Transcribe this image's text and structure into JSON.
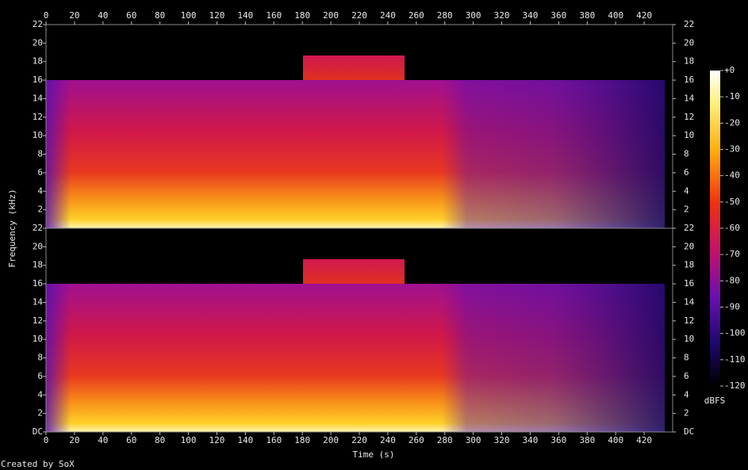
{
  "chart_data": {
    "type": "spectrogram",
    "x_label": "Time (s)",
    "y_label": "Frequency (kHz)",
    "xlim": [
      0,
      440
    ],
    "xticks": [
      0,
      20,
      40,
      60,
      80,
      100,
      120,
      140,
      160,
      180,
      200,
      220,
      240,
      260,
      280,
      300,
      320,
      340,
      360,
      380,
      400,
      420
    ],
    "channels": [
      {
        "ylim": [
          0,
          22
        ],
        "yticks": [
          2,
          4,
          6,
          8,
          10,
          12,
          14,
          16,
          18,
          20,
          22
        ]
      },
      {
        "ylim": [
          0,
          22
        ],
        "yticks": [
          {
            "value": 0,
            "label": "DC"
          },
          2,
          4,
          6,
          8,
          10,
          12,
          14,
          16,
          18,
          20,
          22
        ]
      }
    ],
    "colorbar": {
      "label": "dBFS",
      "lim": [
        -120,
        0
      ],
      "ticks": [
        {
          "value": 0,
          "label": "+0"
        },
        -10,
        -20,
        -30,
        -40,
        -50,
        -60,
        -70,
        -80,
        -90,
        -100,
        -110,
        -120
      ]
    },
    "footer": "Created by SoX"
  }
}
